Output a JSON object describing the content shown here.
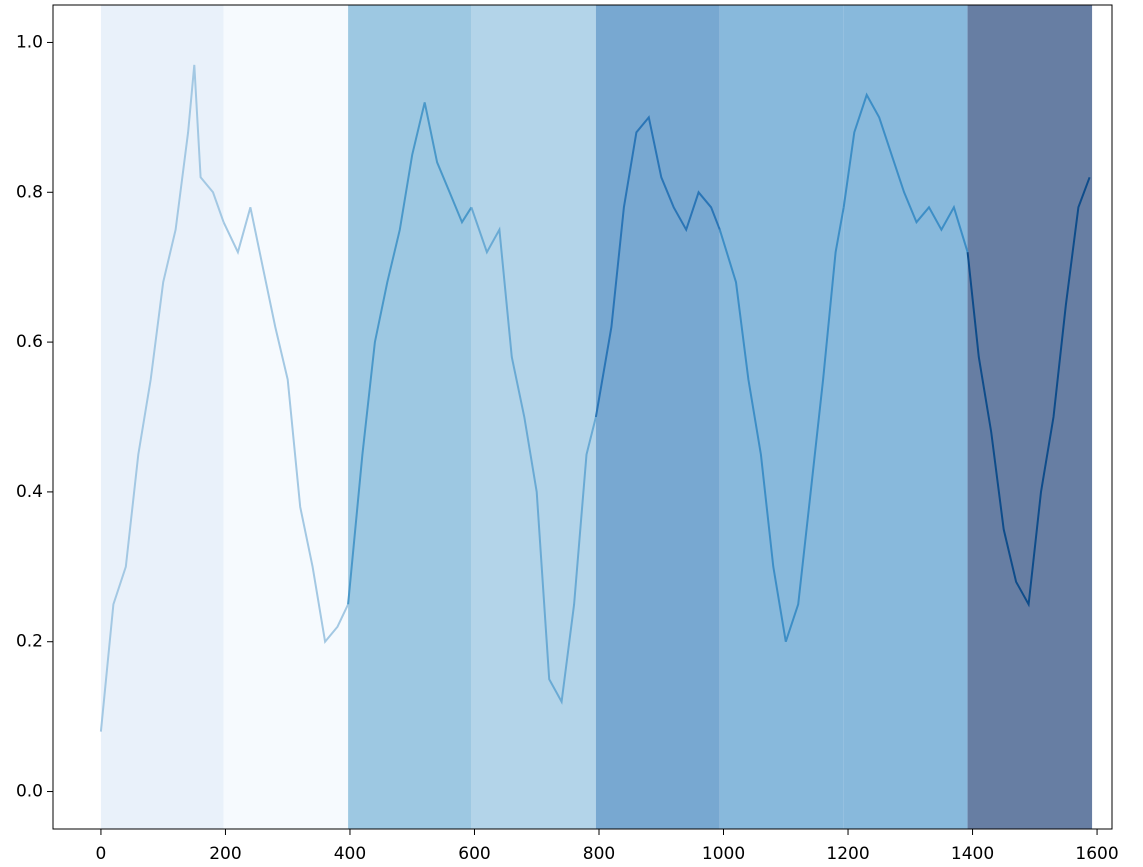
{
  "chart_data": {
    "type": "line",
    "xlim": [
      -77,
      1624
    ],
    "ylim": [
      -0.05,
      1.05
    ],
    "xticks": [
      0,
      200,
      400,
      600,
      800,
      1000,
      1200,
      1400,
      1600
    ],
    "yticks": [
      {
        "value": 0,
        "label": "0.0"
      },
      0.2,
      0.4,
      0.6,
      0.8,
      {
        "value": 1,
        "label": "1.0"
      }
    ],
    "spans": [
      {
        "x0": 0,
        "x1": 197,
        "color": "#e9f1fa"
      },
      {
        "x0": 197,
        "x1": 397,
        "color": "#f6fafe"
      },
      {
        "x0": 397,
        "x1": 595,
        "color": "#9dc8e2"
      },
      {
        "x0": 595,
        "x1": 795,
        "color": "#b3d4e9"
      },
      {
        "x0": 795,
        "x1": 994,
        "color": "#78a8d1"
      },
      {
        "x0": 994,
        "x1": 1193,
        "color": "#88b9dc"
      },
      {
        "x0": 1193,
        "x1": 1392,
        "color": "#88b9dc"
      },
      {
        "x0": 1392,
        "x1": 1592,
        "color": "#677ea3"
      }
    ],
    "series": [
      {
        "color": "#a3c8e3",
        "x": [
          0,
          20,
          40,
          60,
          80,
          100,
          120,
          140,
          150,
          160,
          180,
          197
        ],
        "values": [
          0.08,
          0.25,
          0.3,
          0.45,
          0.55,
          0.68,
          0.75,
          0.88,
          0.97,
          0.82,
          0.8,
          0.76
        ]
      },
      {
        "color": "#a3c8e3",
        "x": [
          197,
          220,
          240,
          260,
          280,
          300,
          320,
          340,
          360,
          380,
          397
        ],
        "values": [
          0.76,
          0.72,
          0.78,
          0.7,
          0.62,
          0.55,
          0.38,
          0.3,
          0.2,
          0.22,
          0.25
        ]
      },
      {
        "color": "#4a98c9",
        "x": [
          397,
          420,
          440,
          460,
          480,
          500,
          520,
          540,
          560,
          580,
          595
        ],
        "values": [
          0.25,
          0.45,
          0.6,
          0.68,
          0.75,
          0.85,
          0.92,
          0.84,
          0.8,
          0.76,
          0.78
        ]
      },
      {
        "color": "#6aaad4",
        "x": [
          595,
          620,
          640,
          660,
          680,
          700,
          720,
          740,
          760,
          780,
          795
        ],
        "values": [
          0.78,
          0.72,
          0.75,
          0.58,
          0.5,
          0.4,
          0.15,
          0.12,
          0.25,
          0.45,
          0.5
        ]
      },
      {
        "color": "#2a75b6",
        "x": [
          795,
          820,
          840,
          860,
          880,
          900,
          920,
          940,
          960,
          980,
          994
        ],
        "values": [
          0.5,
          0.62,
          0.78,
          0.88,
          0.9,
          0.82,
          0.78,
          0.75,
          0.8,
          0.78,
          0.75
        ]
      },
      {
        "color": "#3d8ec6",
        "x": [
          994,
          1020,
          1040,
          1060,
          1080,
          1100,
          1120,
          1140,
          1160,
          1180,
          1193
        ],
        "values": [
          0.75,
          0.68,
          0.55,
          0.45,
          0.3,
          0.2,
          0.25,
          0.4,
          0.55,
          0.72,
          0.78
        ]
      },
      {
        "color": "#3d8ec6",
        "x": [
          1193,
          1210,
          1230,
          1250,
          1270,
          1290,
          1310,
          1330,
          1350,
          1370,
          1392
        ],
        "values": [
          0.78,
          0.88,
          0.93,
          0.9,
          0.85,
          0.8,
          0.76,
          0.78,
          0.75,
          0.78,
          0.72
        ]
      },
      {
        "color": "#0e4c8a",
        "x": [
          1392,
          1410,
          1430,
          1450,
          1470,
          1490,
          1510,
          1530,
          1550,
          1570,
          1588
        ],
        "values": [
          0.72,
          0.58,
          0.48,
          0.35,
          0.28,
          0.25,
          0.4,
          0.5,
          0.65,
          0.78,
          0.82
        ]
      }
    ]
  }
}
